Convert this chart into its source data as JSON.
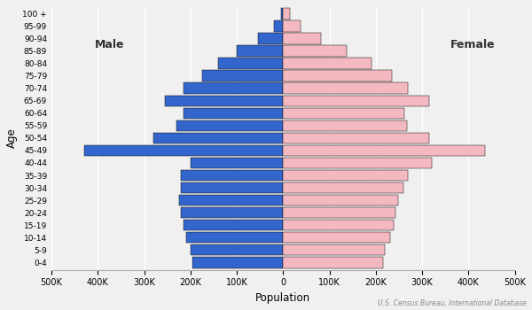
{
  "age_groups": [
    "0-4",
    "5-9",
    "10-14",
    "15-19",
    "20-24",
    "25-29",
    "30-34",
    "35-39",
    "40-44",
    "45-49",
    "50-54",
    "55-59",
    "60-64",
    "65-69",
    "70-74",
    "75-79",
    "80-84",
    "85-89",
    "90-94",
    "95-99",
    "100 +"
  ],
  "male": [
    195000,
    200000,
    210000,
    215000,
    220000,
    225000,
    220000,
    220000,
    200000,
    430000,
    280000,
    230000,
    215000,
    255000,
    215000,
    175000,
    140000,
    100000,
    55000,
    20000,
    5000
  ],
  "female": [
    215000,
    220000,
    230000,
    238000,
    243000,
    248000,
    260000,
    270000,
    320000,
    435000,
    315000,
    268000,
    262000,
    315000,
    270000,
    235000,
    190000,
    138000,
    82000,
    37000,
    15000
  ],
  "male_color": "#3366cc",
  "female_color": "#f4b8c1",
  "male_label": "Male",
  "female_label": "Female",
  "xlabel": "Population",
  "ylabel": "Age",
  "xlim": 500000,
  "tick_step": 100000,
  "background_color": "#f0f0f0",
  "bar_edgecolor": "#111111",
  "source_text": "U.S. Census Bureau, International Database"
}
